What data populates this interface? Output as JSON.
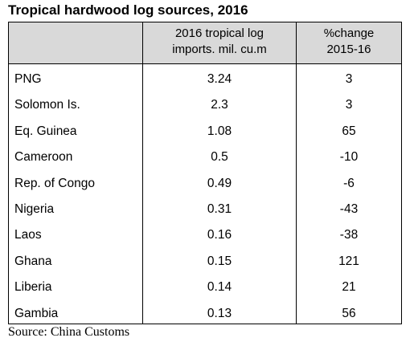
{
  "title": "Tropical hardwood log sources, 2016",
  "source": "Source: China Customs",
  "chart_data": {
    "type": "table",
    "columns": [
      "",
      [
        "2016 tropical log",
        "imports. mil. cu.m"
      ],
      [
        "%change",
        "2015-16"
      ]
    ],
    "rows": [
      {
        "country": "PNG",
        "imports": "3.24",
        "change": "3"
      },
      {
        "country": "Solomon Is.",
        "imports": "2.3",
        "change": "3"
      },
      {
        "country": "Eq. Guinea",
        "imports": "1.08",
        "change": "65"
      },
      {
        "country": "Cameroon",
        "imports": "0.5",
        "change": "-10"
      },
      {
        "country": "Rep. of Congo",
        "imports": "0.49",
        "change": "-6"
      },
      {
        "country": "Nigeria",
        "imports": "0.31",
        "change": "-43"
      },
      {
        "country": "Laos",
        "imports": "0.16",
        "change": "-38"
      },
      {
        "country": "Ghana",
        "imports": "0.15",
        "change": "121"
      },
      {
        "country": "Liberia",
        "imports": "0.14",
        "change": "21"
      },
      {
        "country": "Gambia",
        "imports": "0.13",
        "change": "56"
      }
    ]
  },
  "colors": {
    "header_bg": "#d9d9d9",
    "border": "#000000"
  }
}
